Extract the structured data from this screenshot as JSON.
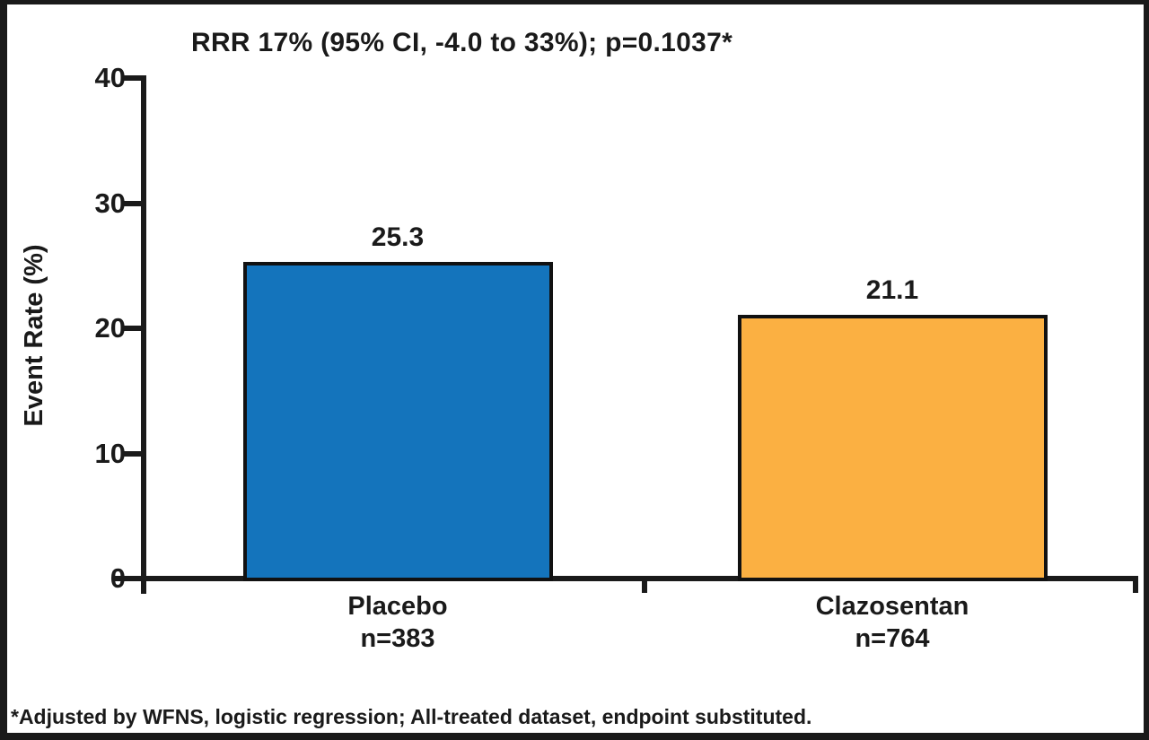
{
  "chart_data": {
    "type": "bar",
    "title": "RRR 17% (95% CI, -4.0 to 33%); p=0.1037*",
    "ylabel": "Event Rate (%)",
    "ylim": [
      0,
      40
    ],
    "yticks": [
      0,
      10,
      20,
      30,
      40
    ],
    "categories": [
      "Placebo",
      "Clazosentan"
    ],
    "category_sublabels": [
      "n=383",
      "n=764"
    ],
    "values": [
      25.3,
      21.1
    ],
    "value_labels": [
      "25.3",
      "21.1"
    ],
    "bar_colors": [
      "#1474BC",
      "#FBB042"
    ],
    "bar_border_color": "#111111",
    "axis_color": "#1a1a1a",
    "text_color": "#1a1a1a",
    "footnote": "*Adjusted by WFNS, logistic regression; All-treated dataset, endpoint substituted.",
    "legend": "none",
    "grid": false
  }
}
